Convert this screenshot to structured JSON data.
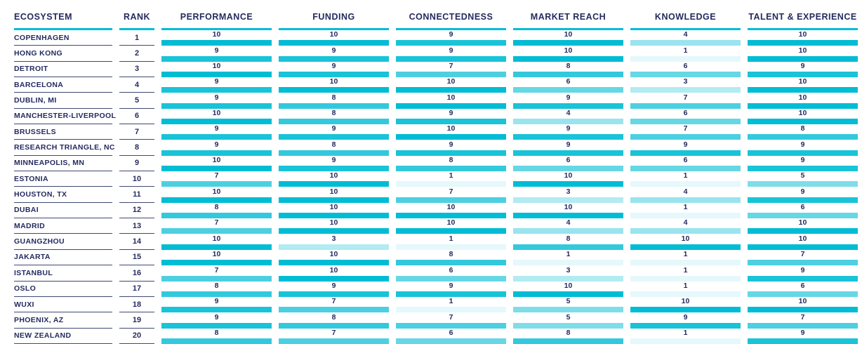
{
  "colors": {
    "accent": "#00BCD4",
    "navy_text": "#242B5F",
    "row_line": "#3E4970",
    "background": "#FFFFFF"
  },
  "chart_data": {
    "type": "table",
    "title": "",
    "columns": [
      "ECOSYSTEM",
      "RANK",
      "PERFORMANCE",
      "FUNDING",
      "CONNECTEDNESS",
      "MARKET REACH",
      "KNOWLEDGE",
      "TALENT & EXPERIENCE"
    ],
    "metric_columns": [
      "PERFORMANCE",
      "FUNDING",
      "CONNECTEDNESS",
      "MARKET REACH",
      "KNOWLEDGE",
      "TALENT & EXPERIENCE"
    ],
    "value_range": [
      1,
      10
    ],
    "encoding": "full-width cell bar; bar shade = accent color at opacity value/10",
    "rows": [
      {
        "ecosystem": "COPENHAGEN",
        "rank": "1",
        "scores": [
          10,
          10,
          9,
          10,
          4,
          10
        ]
      },
      {
        "ecosystem": "HONG KONG",
        "rank": "2",
        "scores": [
          9,
          9,
          9,
          10,
          1,
          10
        ]
      },
      {
        "ecosystem": "DETROIT",
        "rank": "3",
        "scores": [
          10,
          9,
          7,
          8,
          6,
          9
        ]
      },
      {
        "ecosystem": "BARCELONA",
        "rank": "4",
        "scores": [
          9,
          10,
          10,
          6,
          3,
          10
        ]
      },
      {
        "ecosystem": "DUBLIN, MI",
        "rank": "5",
        "scores": [
          9,
          8,
          10,
          9,
          7,
          10
        ]
      },
      {
        "ecosystem": "MANCHESTER-LIVERPOOL",
        "rank": "6",
        "scores": [
          10,
          8,
          9,
          4,
          6,
          10
        ]
      },
      {
        "ecosystem": "BRUSSELS",
        "rank": "7",
        "scores": [
          9,
          9,
          10,
          9,
          7,
          8
        ]
      },
      {
        "ecosystem": "RESEARCH TRIANGLE, NC",
        "rank": "8",
        "scores": [
          9,
          8,
          9,
          9,
          9,
          9
        ]
      },
      {
        "ecosystem": "MINNEAPOLIS, MN",
        "rank": "9",
        "scores": [
          10,
          9,
          8,
          6,
          6,
          9
        ]
      },
      {
        "ecosystem": "ESTONIA",
        "rank": "10",
        "scores": [
          7,
          10,
          1,
          10,
          1,
          5
        ]
      },
      {
        "ecosystem": "HOUSTON, TX",
        "rank": "11",
        "scores": [
          10,
          10,
          7,
          3,
          4,
          9
        ]
      },
      {
        "ecosystem": "DUBAI",
        "rank": "12",
        "scores": [
          8,
          10,
          10,
          10,
          1,
          6
        ]
      },
      {
        "ecosystem": "MADRID",
        "rank": "13",
        "scores": [
          7,
          10,
          10,
          4,
          4,
          10
        ]
      },
      {
        "ecosystem": "GUANGZHOU",
        "rank": "14",
        "scores": [
          10,
          3,
          1,
          8,
          10,
          10
        ]
      },
      {
        "ecosystem": "JAKARTA",
        "rank": "15",
        "scores": [
          10,
          10,
          8,
          1,
          1,
          7
        ]
      },
      {
        "ecosystem": "ISTANBUL",
        "rank": "16",
        "scores": [
          7,
          10,
          6,
          3,
          1,
          9
        ]
      },
      {
        "ecosystem": "OSLO",
        "rank": "17",
        "scores": [
          8,
          9,
          9,
          10,
          1,
          6
        ]
      },
      {
        "ecosystem": "WUXI",
        "rank": "18",
        "scores": [
          9,
          7,
          1,
          5,
          10,
          10
        ]
      },
      {
        "ecosystem": "PHOENIX, AZ",
        "rank": "19",
        "scores": [
          9,
          8,
          7,
          5,
          9,
          7
        ]
      },
      {
        "ecosystem": "NEW ZEALAND",
        "rank": "20",
        "scores": [
          8,
          7,
          6,
          8,
          1,
          9
        ]
      }
    ]
  }
}
